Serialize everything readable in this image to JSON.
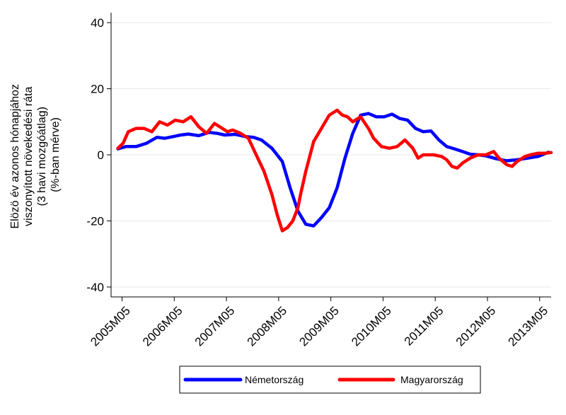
{
  "chart_data": {
    "type": "line",
    "ylabel_lines": [
      "Elözö év azonos hónapjához",
      "viszonyított növekedési ráta",
      "(3 havi mozgóátlag)",
      "(%-ban mérve)"
    ],
    "ylim": [
      -43,
      43
    ],
    "yticks": [
      -40,
      -20,
      0,
      20,
      40
    ],
    "ytick_labels": [
      "-40",
      "-20",
      "0",
      "20",
      "40"
    ],
    "xlim": [
      2005.12,
      2013.55
    ],
    "xticks": [
      2005.33,
      2006.33,
      2007.33,
      2008.33,
      2009.33,
      2010.33,
      2011.33,
      2012.33,
      2013.33
    ],
    "xtick_labels": [
      "2005M05",
      "2006M05",
      "2007M05",
      "2008M05",
      "2009M05",
      "2010M05",
      "2011M05",
      "2012M05",
      "2013M05"
    ],
    "grid": true,
    "legend_position": "bottom",
    "series": [
      {
        "name": "Németország",
        "color": "#0000ff",
        "x": [
          2005.25,
          2005.4,
          2005.6,
          2005.8,
          2006.0,
          2006.15,
          2006.3,
          2006.45,
          2006.6,
          2006.8,
          2007.0,
          2007.15,
          2007.3,
          2007.5,
          2007.7,
          2007.85,
          2008.0,
          2008.2,
          2008.4,
          2008.55,
          2008.7,
          2008.85,
          2009.0,
          2009.15,
          2009.3,
          2009.45,
          2009.6,
          2009.75,
          2009.9,
          2010.05,
          2010.2,
          2010.35,
          2010.5,
          2010.65,
          2010.8,
          2010.95,
          2011.1,
          2011.25,
          2011.4,
          2011.55,
          2011.7,
          2011.85,
          2012.0,
          2012.15,
          2012.3,
          2012.5,
          2012.7,
          2012.9,
          2013.1,
          2013.3,
          2013.5
        ],
        "values": [
          1.8,
          2.5,
          2.5,
          3.5,
          5.3,
          5.0,
          5.5,
          6.0,
          6.3,
          5.8,
          6.8,
          6.5,
          6.0,
          6.2,
          5.5,
          5.3,
          4.5,
          2.0,
          -2.0,
          -10.0,
          -17.0,
          -21.0,
          -21.5,
          -19.0,
          -16.0,
          -10.0,
          -1.0,
          6.5,
          12.0,
          12.5,
          11.5,
          11.5,
          12.3,
          11.0,
          10.5,
          8.0,
          7.0,
          7.2,
          4.5,
          2.5,
          1.8,
          1.0,
          0.2,
          0.0,
          -0.3,
          -1.2,
          -1.8,
          -1.5,
          -1.0,
          -0.5,
          0.8
        ]
      },
      {
        "name": "Magyarország",
        "color": "#ff0000",
        "x": [
          2005.25,
          2005.35,
          2005.45,
          2005.6,
          2005.75,
          2005.9,
          2006.05,
          2006.2,
          2006.35,
          2006.5,
          2006.65,
          2006.8,
          2006.95,
          2007.1,
          2007.25,
          2007.35,
          2007.45,
          2007.6,
          2007.75,
          2007.9,
          2008.05,
          2008.2,
          2008.3,
          2008.4,
          2008.5,
          2008.6,
          2008.7,
          2008.75,
          2008.85,
          2009.0,
          2009.15,
          2009.3,
          2009.45,
          2009.55,
          2009.65,
          2009.75,
          2009.9,
          2010.05,
          2010.15,
          2010.3,
          2010.45,
          2010.6,
          2010.75,
          2010.9,
          2011.0,
          2011.1,
          2011.2,
          2011.3,
          2011.45,
          2011.55,
          2011.65,
          2011.75,
          2011.85,
          2012.0,
          2012.15,
          2012.3,
          2012.45,
          2012.55,
          2012.7,
          2012.8,
          2012.9,
          2013.05,
          2013.15,
          2013.3,
          2013.45,
          2013.55
        ],
        "values": [
          2.0,
          3.5,
          7.0,
          8.0,
          8.0,
          7.0,
          10.0,
          9.0,
          10.5,
          10.0,
          11.5,
          8.5,
          6.5,
          9.5,
          8.0,
          7.0,
          7.5,
          6.5,
          5.0,
          0.0,
          -5.0,
          -12.0,
          -18.0,
          -23.0,
          -22.0,
          -20.0,
          -16.0,
          -12.0,
          -5.0,
          4.0,
          8.0,
          12.0,
          13.5,
          12.0,
          11.5,
          10.0,
          11.5,
          8.0,
          5.0,
          2.5,
          2.0,
          2.5,
          4.5,
          2.0,
          -1.0,
          0.0,
          0.0,
          0.0,
          -0.5,
          -1.5,
          -3.5,
          -4.0,
          -2.5,
          -1.0,
          0.0,
          0.0,
          1.0,
          -1.0,
          -3.0,
          -3.5,
          -2.0,
          -0.5,
          0.0,
          0.5,
          0.5,
          0.7
        ]
      }
    ]
  }
}
